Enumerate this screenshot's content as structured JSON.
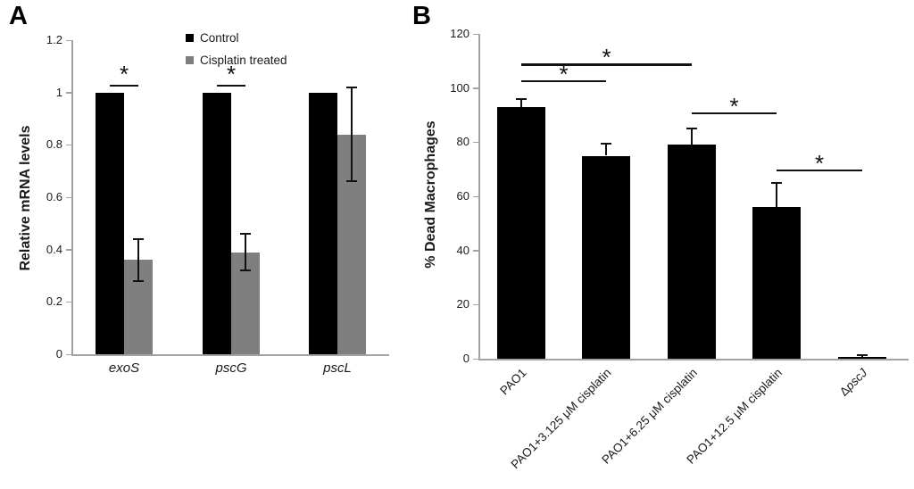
{
  "panels": [
    {
      "label": "A"
    },
    {
      "label": "B"
    }
  ],
  "colors": {
    "bar_black": "#000000",
    "bar_gray": "#7f7f7f",
    "axis": "#a3a3a3",
    "text": "#1a1a1a",
    "error_bar": "#111111",
    "significance": "#111111"
  },
  "chart_data": [
    {
      "type": "bar",
      "panel": "A",
      "title": "",
      "xlabel": "",
      "ylabel": "Relative mRNA levels",
      "ylim": [
        0,
        1.2
      ],
      "yticks": [
        0,
        0.2,
        0.4,
        0.6,
        0.8,
        1,
        1.2
      ],
      "ytick_labels": [
        "0",
        "0.2",
        "0.4",
        "0.6",
        "0.8",
        "1",
        "1.2"
      ],
      "grid": false,
      "legend_position": "top-center",
      "categories": [
        {
          "parts": [
            {
              "t": "exoS",
              "i": true
            }
          ]
        },
        {
          "parts": [
            {
              "t": "pscG",
              "i": true
            }
          ]
        },
        {
          "parts": [
            {
              "t": "pscL",
              "i": true
            }
          ]
        }
      ],
      "series": [
        {
          "name": "Control",
          "color": "#000000",
          "values": [
            1.0,
            1.0,
            1.0
          ],
          "errors": [
            0,
            0,
            0
          ]
        },
        {
          "name": "Cisplatin treated",
          "color": "#7f7f7f",
          "values": [
            0.36,
            0.39,
            0.84
          ],
          "errors": [
            0.08,
            0.07,
            0.18
          ]
        }
      ],
      "legend": [
        "Control",
        "Cisplatin treated"
      ],
      "significance": [
        {
          "category": 0,
          "y": 1.03,
          "label": "*"
        },
        {
          "category": 1,
          "y": 1.03,
          "label": "*"
        }
      ]
    },
    {
      "type": "bar",
      "panel": "B",
      "title": "",
      "xlabel": "",
      "ylabel": "% Dead Macrophages",
      "ylim": [
        0,
        120
      ],
      "yticks": [
        0,
        20,
        40,
        60,
        80,
        100,
        120
      ],
      "ytick_labels": [
        "0",
        "20",
        "40",
        "60",
        "80",
        "100",
        "120"
      ],
      "grid": false,
      "legend_position": "none",
      "xtick_rotation": 45,
      "categories": [
        {
          "parts": [
            {
              "t": "PAO1",
              "i": false
            }
          ]
        },
        {
          "parts": [
            {
              "t": "PAO1+3.125 μM cisplatin",
              "i": false
            }
          ]
        },
        {
          "parts": [
            {
              "t": "PAO1+6.25 μM cisplatin",
              "i": false
            }
          ]
        },
        {
          "parts": [
            {
              "t": "PAO1+12.5 μM cisplatin",
              "i": false
            }
          ]
        },
        {
          "parts": [
            {
              "t": "Δ",
              "i": false
            },
            {
              "t": "pscJ",
              "i": true
            }
          ]
        }
      ],
      "series": [
        {
          "name": "% dead macrophages",
          "color": "#000000",
          "values": [
            93,
            75,
            79,
            56,
            0.6
          ],
          "errors": [
            3,
            4.5,
            6,
            9,
            0.6
          ],
          "error_side": "upper"
        }
      ],
      "significance": [
        {
          "from": 0,
          "to": 1,
          "y": 103,
          "label": "*"
        },
        {
          "from": 0,
          "to": 2,
          "y": 109,
          "label": "*"
        },
        {
          "from": 2,
          "to": 3,
          "y": 91,
          "label": "*"
        },
        {
          "from": 3,
          "to": 4,
          "y": 70,
          "label": "*"
        }
      ]
    }
  ]
}
